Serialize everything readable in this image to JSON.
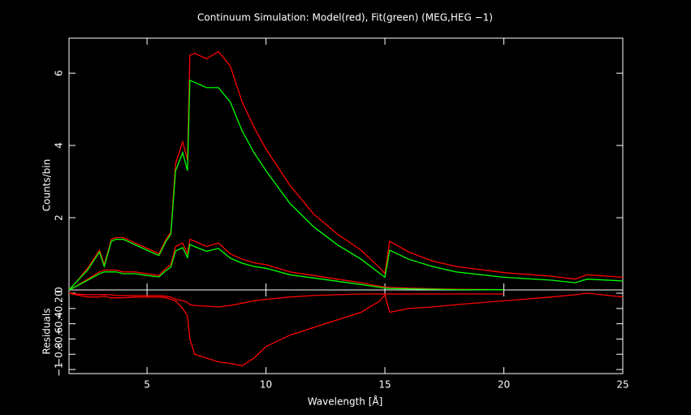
{
  "chart_data": [
    {
      "type": "line",
      "title": "Continuum Simulation: Model(red), Fit(green) (MEG,HEG −1)",
      "ylabel": "Counts/bin",
      "x": [
        1.72,
        2,
        2.5,
        3,
        3.2,
        3.5,
        3.7,
        4,
        4.5,
        5,
        5.5,
        5.8,
        6,
        6.2,
        6.5,
        6.7,
        6.8,
        7,
        7.5,
        8,
        8.5,
        9,
        9.5,
        10,
        11,
        12,
        13,
        14,
        14.8,
        15,
        15.2,
        16,
        17,
        18,
        20,
        22,
        23,
        23.5,
        25
      ],
      "series": [
        {
          "color": "#ff0000",
          "values": [
            0,
            0.2,
            0.6,
            1.1,
            0.7,
            1.4,
            1.45,
            1.45,
            1.3,
            1.15,
            1.0,
            1.4,
            1.6,
            3.5,
            4.1,
            3.6,
            6.5,
            6.55,
            6.4,
            6.6,
            6.2,
            5.2,
            4.5,
            3.9,
            2.9,
            2.1,
            1.55,
            1.1,
            0.6,
            0.45,
            1.35,
            1.05,
            0.8,
            0.65,
            0.48,
            0.38,
            0.3,
            0.42,
            0.35
          ]
        },
        {
          "color": "#00ff00",
          "values": [
            0,
            0.2,
            0.55,
            1.05,
            0.65,
            1.35,
            1.4,
            1.4,
            1.25,
            1.1,
            0.95,
            1.35,
            1.55,
            3.3,
            3.8,
            3.3,
            5.8,
            5.75,
            5.6,
            5.6,
            5.2,
            4.4,
            3.8,
            3.3,
            2.4,
            1.75,
            1.25,
            0.85,
            0.45,
            0.35,
            1.1,
            0.85,
            0.65,
            0.5,
            0.35,
            0.27,
            0.2,
            0.3,
            0.25
          ]
        },
        {
          "color": "#ff0000",
          "values": [
            0,
            0.1,
            0.3,
            0.5,
            0.55,
            0.55,
            0.55,
            0.5,
            0.5,
            0.45,
            0.4,
            0.6,
            0.7,
            1.2,
            1.3,
            1.0,
            1.4,
            1.35,
            1.2,
            1.3,
            1.0,
            0.85,
            0.75,
            0.7,
            0.5,
            0.4,
            0.3,
            0.2,
            0.1,
            0.08,
            0.07,
            0.05,
            0.03,
            0.02,
            0.01,
            null,
            null,
            null,
            null
          ]
        },
        {
          "color": "#00ff00",
          "values": [
            0,
            0.09,
            0.27,
            0.45,
            0.5,
            0.5,
            0.5,
            0.45,
            0.45,
            0.4,
            0.36,
            0.54,
            0.63,
            1.08,
            1.17,
            0.9,
            1.26,
            1.2,
            1.07,
            1.15,
            0.88,
            0.74,
            0.65,
            0.6,
            0.42,
            0.33,
            0.24,
            0.15,
            0.07,
            0.05,
            0.04,
            0.03,
            0.02,
            0.01,
            0.005,
            null,
            null,
            null,
            null
          ]
        }
      ],
      "xlim": [
        1.72,
        25
      ],
      "xticks": [
        5,
        10,
        15,
        20,
        25
      ],
      "ylim": [
        0,
        6.97
      ],
      "yticks": [
        0,
        2,
        4,
        6
      ]
    },
    {
      "type": "line",
      "xlabel": "Wavelength [Å]",
      "ylabel": "Residuals",
      "x": [
        1.72,
        2,
        2.5,
        3,
        3.2,
        3.5,
        3.7,
        4,
        4.5,
        5,
        5.5,
        5.8,
        6,
        6.2,
        6.5,
        6.7,
        6.8,
        7,
        7.5,
        8,
        8.5,
        9,
        9.5,
        10,
        11,
        12,
        13,
        14,
        14.8,
        15,
        15.2,
        16,
        17,
        18,
        20,
        22,
        23,
        23.5,
        25
      ],
      "series": [
        {
          "color": "#ff0000",
          "values": [
            0,
            -0.02,
            -0.05,
            -0.05,
            -0.04,
            -0.06,
            -0.06,
            -0.06,
            -0.05,
            -0.05,
            -0.05,
            -0.06,
            -0.08,
            -0.1,
            -0.2,
            -0.3,
            -0.6,
            -0.8,
            -0.85,
            -0.9,
            -0.92,
            -0.95,
            -0.85,
            -0.7,
            -0.55,
            -0.45,
            -0.35,
            -0.25,
            -0.1,
            -0.02,
            -0.25,
            -0.2,
            -0.18,
            -0.15,
            -0.1,
            -0.05,
            -0.02,
            0,
            -0.05
          ]
        },
        {
          "color": "#ff0000",
          "values": [
            0,
            -0.01,
            -0.02,
            -0.02,
            -0.02,
            -0.02,
            -0.03,
            -0.03,
            -0.03,
            -0.03,
            -0.03,
            -0.04,
            -0.05,
            -0.08,
            -0.1,
            -0.12,
            -0.15,
            -0.16,
            -0.17,
            -0.18,
            -0.16,
            -0.13,
            -0.1,
            -0.08,
            -0.05,
            -0.03,
            -0.02,
            -0.01,
            -0.01,
            -0.01,
            -0.01,
            -0.01,
            -0.01,
            -0.01,
            -0.01,
            null,
            null,
            null,
            null
          ]
        }
      ],
      "xlim": [
        1.72,
        25
      ],
      "xticks": [
        5,
        10,
        15,
        20,
        25
      ],
      "ylim": [
        -1.053,
        0.043
      ],
      "yticks": [
        {
          "value": -1,
          "label": "−1"
        },
        {
          "value": -0.8,
          "label": "−0.8"
        },
        {
          "value": -0.6,
          "label": "−0.6"
        },
        {
          "value": -0.4,
          "label": "−0.4"
        },
        {
          "value": -0.2,
          "label": "−0.2"
        },
        0
      ]
    }
  ]
}
